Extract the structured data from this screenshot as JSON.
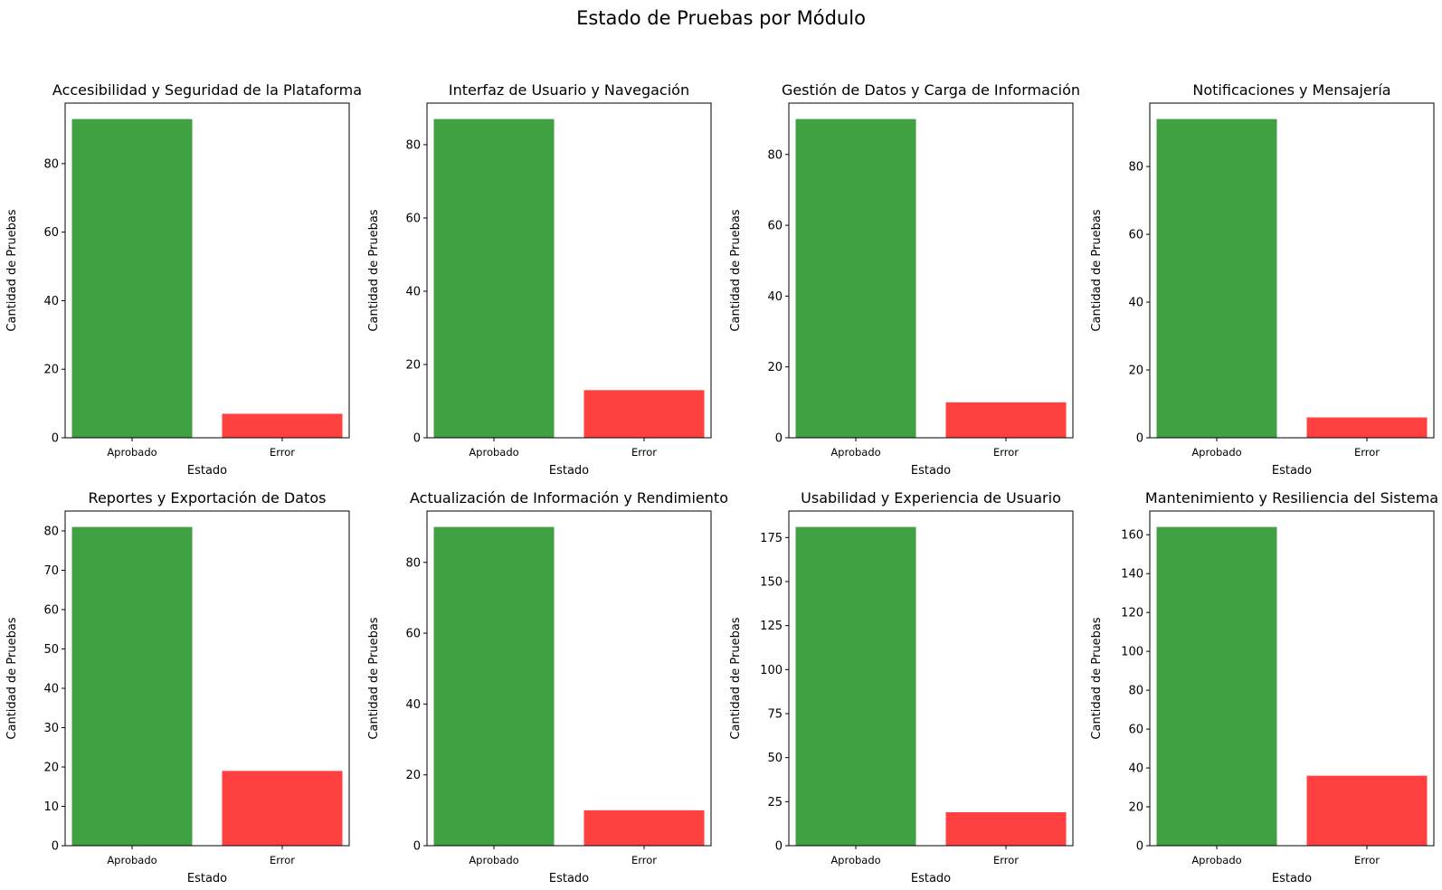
{
  "title": "Estado de Pruebas por Módulo",
  "colors": {
    "approved": "#41a041",
    "error": "#ff4040"
  },
  "chart_data": [
    {
      "type": "bar",
      "title": "Accesibilidad y Seguridad de la Plataforma",
      "categories": [
        "Aprobado",
        "Error"
      ],
      "values": [
        93,
        7
      ],
      "xlabel": "Estado",
      "ylabel": "Cantidad de Pruebas",
      "ylim": [
        0,
        97.65
      ],
      "yticks": [
        0,
        20,
        40,
        60,
        80
      ]
    },
    {
      "type": "bar",
      "title": "Interfaz de Usuario y Navegación",
      "categories": [
        "Aprobado",
        "Error"
      ],
      "values": [
        87,
        13
      ],
      "xlabel": "Estado",
      "ylabel": "Cantidad de Pruebas",
      "ylim": [
        0,
        91.35
      ],
      "yticks": [
        0,
        20,
        40,
        60,
        80
      ]
    },
    {
      "type": "bar",
      "title": "Gestión de Datos y Carga de Información",
      "categories": [
        "Aprobado",
        "Error"
      ],
      "values": [
        90,
        10
      ],
      "xlabel": "Estado",
      "ylabel": "Cantidad de Pruebas",
      "ylim": [
        0,
        94.5
      ],
      "yticks": [
        0,
        20,
        40,
        60,
        80
      ]
    },
    {
      "type": "bar",
      "title": "Notificaciones y Mensajería",
      "categories": [
        "Aprobado",
        "Error"
      ],
      "values": [
        94,
        6
      ],
      "xlabel": "Estado",
      "ylabel": "Cantidad de Pruebas",
      "ylim": [
        0,
        98.7
      ],
      "yticks": [
        0,
        20,
        40,
        60,
        80
      ]
    },
    {
      "type": "bar",
      "title": "Reportes y Exportación de Datos",
      "categories": [
        "Aprobado",
        "Error"
      ],
      "values": [
        81,
        19
      ],
      "xlabel": "Estado",
      "ylabel": "Cantidad de Pruebas",
      "ylim": [
        0,
        85.05
      ],
      "yticks": [
        0,
        10,
        20,
        30,
        40,
        50,
        60,
        70,
        80
      ]
    },
    {
      "type": "bar",
      "title": "Actualización de Información y Rendimiento",
      "categories": [
        "Aprobado",
        "Error"
      ],
      "values": [
        90,
        10
      ],
      "xlabel": "Estado",
      "ylabel": "Cantidad de Pruebas",
      "ylim": [
        0,
        94.5
      ],
      "yticks": [
        0,
        20,
        40,
        60,
        80
      ]
    },
    {
      "type": "bar",
      "title": "Usabilidad y Experiencia de Usuario",
      "categories": [
        "Aprobado",
        "Error"
      ],
      "values": [
        181,
        19
      ],
      "xlabel": "Estado",
      "ylabel": "Cantidad de Pruebas",
      "ylim": [
        0,
        190.05
      ],
      "yticks": [
        0,
        25,
        50,
        75,
        100,
        125,
        150,
        175
      ]
    },
    {
      "type": "bar",
      "title": "Mantenimiento y Resiliencia del Sistema",
      "categories": [
        "Aprobado",
        "Error"
      ],
      "values": [
        164,
        36
      ],
      "xlabel": "Estado",
      "ylabel": "Cantidad de Pruebas",
      "ylim": [
        0,
        172.2
      ],
      "yticks": [
        0,
        20,
        40,
        60,
        80,
        100,
        120,
        140,
        160
      ]
    }
  ]
}
